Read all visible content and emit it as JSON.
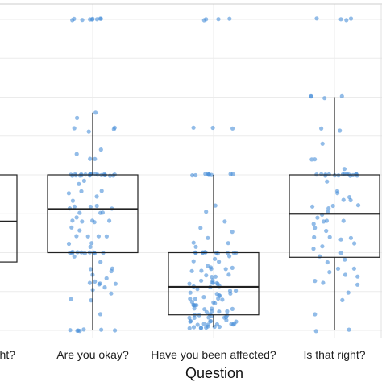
{
  "chart_data": {
    "type": "box",
    "xlabel": "Question",
    "ylabel": "",
    "ylim": [
      0,
      100
    ],
    "grid": true,
    "colors": {
      "points": "#4a90d9",
      "box_stroke": "#222222",
      "grid": "#ebebeb"
    },
    "categories": [
      "Is this right?",
      "Are you okay?",
      "Have you been affected?",
      "Is that right?"
    ],
    "category_labels_visible": [
      "ht?",
      "Are you okay?",
      "Have you been affected?",
      "Is that right?"
    ],
    "boxes": [
      {
        "category": "Is this right?",
        "q1": 22,
        "median": 35,
        "q3": 50
      },
      {
        "category": "Are you okay?",
        "q1": 25,
        "median": 39,
        "q3": 50,
        "whisker_low": 0,
        "whisker_high": 70
      },
      {
        "category": "Have you been affected?",
        "q1": 5,
        "median": 14,
        "q3": 25,
        "whisker_low": 1,
        "whisker_high": 50
      },
      {
        "category": "Is that right?",
        "q1": 23.5,
        "median": 37.5,
        "q3": 50,
        "whisker_low": 0,
        "whisker_high": 75
      }
    ],
    "points": [
      {
        "category": "Are you okay?",
        "values": [
          100,
          100,
          100,
          100,
          100,
          100,
          100,
          100,
          100,
          70,
          68,
          65,
          65,
          65,
          64,
          58,
          57,
          55,
          55,
          50,
          50,
          50,
          50,
          50,
          50,
          50,
          50,
          50,
          50,
          50,
          50,
          50,
          50,
          50,
          50,
          50,
          50,
          50,
          50,
          50,
          50,
          48,
          47,
          45,
          45,
          44,
          43,
          42,
          40,
          40,
          40,
          39,
          39,
          38,
          38,
          38,
          36,
          35,
          35,
          35,
          35,
          35,
          33,
          32,
          30,
          30,
          30,
          30,
          28,
          28,
          27,
          25,
          25,
          25,
          25,
          25,
          25,
          25,
          25,
          25,
          25,
          24,
          22,
          20,
          20,
          19,
          18,
          17,
          16,
          15,
          15,
          15,
          15,
          14,
          13,
          12,
          10,
          10,
          5,
          0,
          0,
          0,
          0,
          0,
          0,
          0
        ]
      },
      {
        "category": "Have you been affected?",
        "values": [
          100,
          100,
          100,
          100,
          65,
          65,
          65,
          50,
          50,
          50,
          50,
          50,
          50,
          50,
          50,
          50,
          40,
          38,
          35,
          33,
          32,
          30,
          28,
          28,
          27,
          25,
          25,
          25,
          25,
          25,
          25,
          25,
          25,
          25,
          25,
          25,
          24,
          23,
          22,
          22,
          21,
          20,
          20,
          20,
          20,
          19,
          19,
          18,
          18,
          17,
          17,
          16,
          16,
          15,
          15,
          15,
          15,
          15,
          14,
          14,
          14,
          13,
          13,
          13,
          12,
          12,
          12,
          11,
          11,
          11,
          10,
          10,
          10,
          10,
          9,
          9,
          9,
          8,
          8,
          8,
          8,
          7,
          7,
          7,
          7,
          6,
          6,
          6,
          6,
          5,
          5,
          5,
          5,
          5,
          4,
          4,
          4,
          4,
          4,
          3,
          3,
          3,
          3,
          3,
          3,
          2,
          2,
          2,
          2,
          2,
          2,
          2,
          1,
          1,
          1,
          1,
          1,
          1,
          1,
          1
        ]
      },
      {
        "category": "Is that right?",
        "values": [
          100,
          100,
          100,
          100,
          75,
          75,
          75,
          75,
          65,
          64,
          60,
          55,
          55,
          52,
          50,
          50,
          50,
          50,
          50,
          50,
          50,
          50,
          50,
          50,
          50,
          50,
          50,
          50,
          50,
          50,
          48,
          45,
          44,
          43,
          42,
          42,
          40,
          40,
          40,
          39,
          38,
          37,
          36,
          35,
          35,
          35,
          34,
          33,
          32,
          30,
          30,
          30,
          29,
          28,
          27,
          26,
          25,
          24,
          23,
          22,
          20,
          20,
          19,
          18,
          17,
          16,
          15,
          15,
          12,
          10,
          5,
          0,
          0
        ]
      }
    ]
  }
}
